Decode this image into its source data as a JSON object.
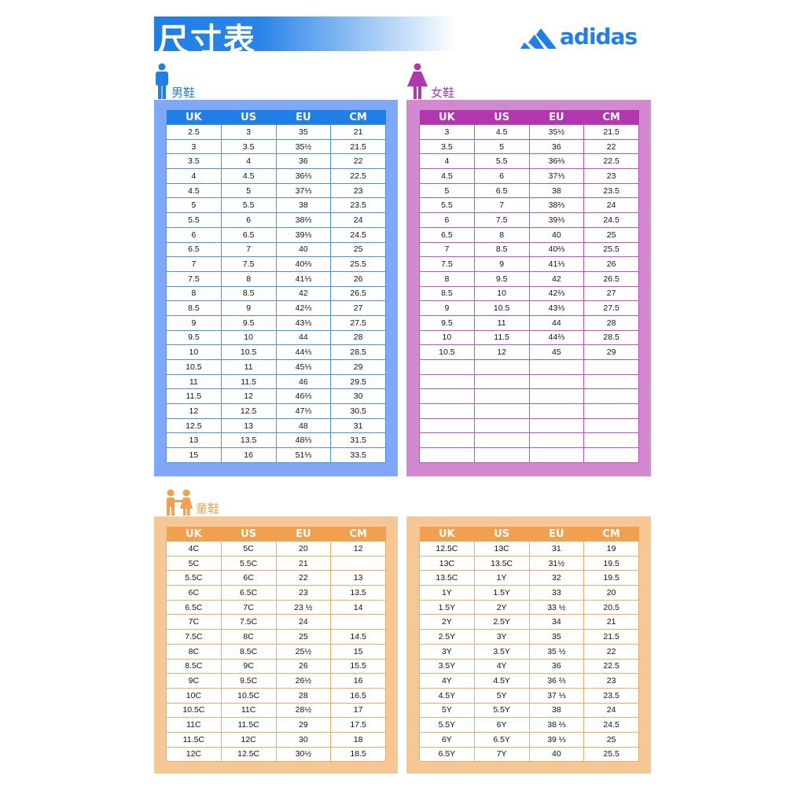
{
  "header": {
    "title": "尺寸表",
    "brand": "adidas"
  },
  "columns": [
    "UK",
    "US",
    "EU",
    "CM"
  ],
  "colors": {
    "men_header": "#1f7fe6",
    "men_panel": "#80a8f8",
    "men_line": "#4a90ee",
    "women_header": "#b236ae",
    "women_panel": "#d389d0",
    "women_line": "#c44fc0",
    "kids_header": "#f0a04e",
    "kids_panel": "#f5c795",
    "kids_line": "#f2ab66"
  },
  "men": {
    "label": "男鞋",
    "icon": "man-icon",
    "rows": [
      [
        "2.5",
        "3",
        "35",
        "21"
      ],
      [
        "3",
        "3.5",
        "35½",
        "21.5"
      ],
      [
        "3.5",
        "4",
        "36",
        "22"
      ],
      [
        "4",
        "4.5",
        "36⅔",
        "22.5"
      ],
      [
        "4.5",
        "5",
        "37⅓",
        "23"
      ],
      [
        "5",
        "5.5",
        "38",
        "23.5"
      ],
      [
        "5.5",
        "6",
        "38⅔",
        "24"
      ],
      [
        "6",
        "6.5",
        "39⅓",
        "24.5"
      ],
      [
        "6.5",
        "7",
        "40",
        "25"
      ],
      [
        "7",
        "7.5",
        "40⅔",
        "25.5"
      ],
      [
        "7.5",
        "8",
        "41⅓",
        "26"
      ],
      [
        "8",
        "8.5",
        "42",
        "26.5"
      ],
      [
        "8.5",
        "9",
        "42⅔",
        "27"
      ],
      [
        "9",
        "9.5",
        "43⅓",
        "27.5"
      ],
      [
        "9.5",
        "10",
        "44",
        "28"
      ],
      [
        "10",
        "10.5",
        "44⅔",
        "28.5"
      ],
      [
        "10.5",
        "11",
        "45⅓",
        "29"
      ],
      [
        "11",
        "11.5",
        "46",
        "29.5"
      ],
      [
        "11.5",
        "12",
        "46⅔",
        "30"
      ],
      [
        "12",
        "12.5",
        "47⅓",
        "30.5"
      ],
      [
        "12.5",
        "13",
        "48",
        "31"
      ],
      [
        "13",
        "13.5",
        "48⅔",
        "31.5"
      ],
      [
        "15",
        "16",
        "51⅓",
        "33.5"
      ]
    ]
  },
  "women": {
    "label": "女鞋",
    "icon": "woman-icon",
    "rows": [
      [
        "3",
        "4.5",
        "35½",
        "21.5"
      ],
      [
        "3.5",
        "5",
        "36",
        "22"
      ],
      [
        "4",
        "5.5",
        "36⅔",
        "22.5"
      ],
      [
        "4.5",
        "6",
        "37⅓",
        "23"
      ],
      [
        "5",
        "6.5",
        "38",
        "23.5"
      ],
      [
        "5.5",
        "7",
        "38⅔",
        "24"
      ],
      [
        "6",
        "7.5",
        "39⅓",
        "24.5"
      ],
      [
        "6.5",
        "8",
        "40",
        "25"
      ],
      [
        "7",
        "8.5",
        "40⅔",
        "25.5"
      ],
      [
        "7.5",
        "9",
        "41⅓",
        "26"
      ],
      [
        "8",
        "9.5",
        "42",
        "26.5"
      ],
      [
        "8.5",
        "10",
        "42⅔",
        "27"
      ],
      [
        "9",
        "10.5",
        "43⅓",
        "27.5"
      ],
      [
        "9.5",
        "11",
        "44",
        "28"
      ],
      [
        "10",
        "11.5",
        "44⅔",
        "28.5"
      ],
      [
        "10.5",
        "12",
        "45",
        "29"
      ],
      [
        "",
        "",
        "",
        ""
      ],
      [
        "",
        "",
        "",
        ""
      ],
      [
        "",
        "",
        "",
        ""
      ],
      [
        "",
        "",
        "",
        ""
      ],
      [
        "",
        "",
        "",
        ""
      ],
      [
        "",
        "",
        "",
        ""
      ],
      [
        "",
        "",
        "",
        ""
      ]
    ]
  },
  "kids": {
    "label": "童鞋",
    "icon": "children-icon",
    "left_rows": [
      [
        "4C",
        "5C",
        "20",
        "12"
      ],
      [
        "5C",
        "5.5C",
        "21",
        ""
      ],
      [
        "5.5C",
        "6C",
        "22",
        "13"
      ],
      [
        "6C",
        "6.5C",
        "23",
        "13.5"
      ],
      [
        "6.5C",
        "7C",
        "23 ½",
        "14"
      ],
      [
        "7C",
        "7.5C",
        "24",
        ""
      ],
      [
        "7.5C",
        "8C",
        "25",
        "14.5"
      ],
      [
        "8C",
        "8.5C",
        "25½",
        "15"
      ],
      [
        "8.5C",
        "9C",
        "26",
        "15.5"
      ],
      [
        "9C",
        "9.5C",
        "26½",
        "16"
      ],
      [
        "10C",
        "10.5C",
        "28",
        "16.5"
      ],
      [
        "10.5C",
        "11C",
        "28½",
        "17"
      ],
      [
        "11C",
        "11.5C",
        "29",
        "17.5"
      ],
      [
        "11.5C",
        "12C",
        "30",
        "18"
      ],
      [
        "12C",
        "12.5C",
        "30½",
        "18.5"
      ]
    ],
    "right_rows": [
      [
        "12.5C",
        "13C",
        "31",
        "19"
      ],
      [
        "13C",
        "13.5C",
        "31½",
        "19.5"
      ],
      [
        "13.5C",
        "1Y",
        "32",
        "19.5"
      ],
      [
        "1Y",
        "1.5Y",
        "33",
        "20"
      ],
      [
        "1.5Y",
        "2Y",
        "33 ½",
        "20.5"
      ],
      [
        "2Y",
        "2.5Y",
        "34",
        "21"
      ],
      [
        "2.5Y",
        "3Y",
        "35",
        "21.5"
      ],
      [
        "3Y",
        "3.5Y",
        "35 ½",
        "22"
      ],
      [
        "3.5Y",
        "4Y",
        "36",
        "22.5"
      ],
      [
        "4Y",
        "4.5Y",
        "36 ⅔",
        "23"
      ],
      [
        "4.5Y",
        "5Y",
        "37 ⅓",
        "23.5"
      ],
      [
        "5Y",
        "5.5Y",
        "38",
        "24"
      ],
      [
        "5.5Y",
        "6Y",
        "38 ⅔",
        "24.5"
      ],
      [
        "6Y",
        "6.5Y",
        "39 ⅓",
        "25"
      ],
      [
        "6.5Y",
        "7Y",
        "40",
        "25.5"
      ]
    ]
  }
}
